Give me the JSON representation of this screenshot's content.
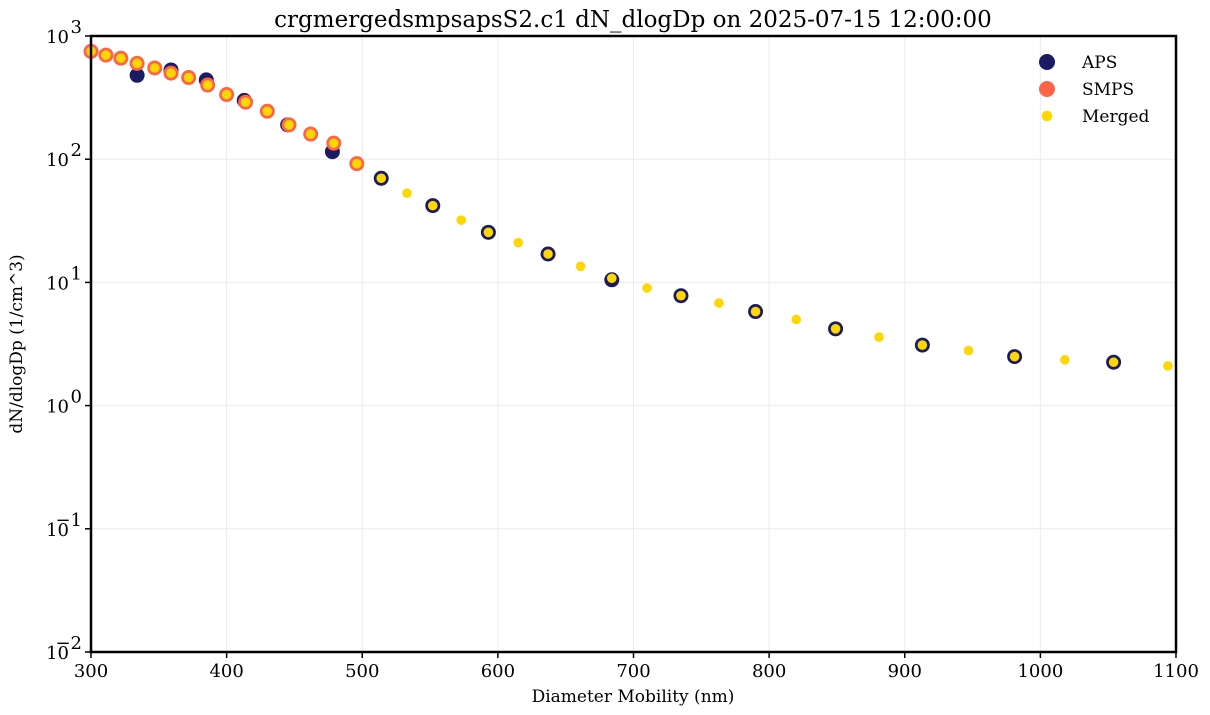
{
  "chart_data": {
    "type": "scatter",
    "title": "crgmergedsmpsapsS2.c1 dN_dlogDp on 2025-07-15 12:00:00",
    "xlabel": "Diameter Mobility (nm)",
    "ylabel": "dN/dlogDp (1/cm^3)",
    "xlim": [
      300,
      1100
    ],
    "ylim": [
      0.01,
      1000
    ],
    "yscale": "log",
    "grid": true,
    "legend": "top-right",
    "x_ticks": [
      "300",
      "400",
      "500",
      "600",
      "700",
      "800",
      "900",
      "1000",
      "1100"
    ],
    "x_tick_values": [
      300,
      400,
      500,
      600,
      700,
      800,
      900,
      1000,
      1100
    ],
    "y_ticks": [
      {
        "base": "10",
        "exp": "−2",
        "value": 0.01
      },
      {
        "base": "10",
        "exp": "−1",
        "value": 0.1
      },
      {
        "base": "10",
        "exp": "0",
        "value": 1
      },
      {
        "base": "10",
        "exp": "1",
        "value": 10
      },
      {
        "base": "10",
        "exp": "2",
        "value": 100
      },
      {
        "base": "10",
        "exp": "3",
        "value": 1000
      }
    ],
    "series": [
      {
        "name": "APS",
        "color": "#1b1b64",
        "x": [
          334,
          359,
          385,
          413,
          445,
          478,
          514,
          552,
          593,
          637,
          684,
          735,
          790,
          849,
          913,
          981,
          1054
        ],
        "y": [
          480,
          530,
          440,
          300,
          190,
          115,
          70,
          42,
          25.5,
          17,
          10.5,
          7.8,
          5.8,
          4.2,
          3.1,
          2.5,
          2.25
        ]
      },
      {
        "name": "SMPS",
        "color": "#ff6347",
        "x": [
          300,
          311,
          322,
          334,
          347,
          359,
          372,
          386,
          400,
          414,
          430,
          446,
          462,
          479,
          496
        ],
        "y": [
          750,
          700,
          660,
          600,
          550,
          500,
          460,
          400,
          335,
          290,
          245,
          190,
          160,
          135,
          92
        ]
      },
      {
        "name": "Merged",
        "color": "#ffd700",
        "x": [
          300,
          311,
          322,
          334,
          347,
          359,
          372,
          386,
          400,
          414,
          430,
          446,
          462,
          479,
          496,
          514,
          533,
          552,
          573,
          593,
          615,
          637,
          661,
          684,
          710,
          735,
          763,
          790,
          820,
          849,
          881,
          913,
          947,
          981,
          1018,
          1054,
          1094
        ],
        "y": [
          750,
          700,
          660,
          600,
          550,
          500,
          460,
          400,
          335,
          290,
          245,
          190,
          160,
          135,
          92,
          70,
          53,
          42,
          32,
          25.5,
          21,
          17,
          13.5,
          10.8,
          9,
          7.8,
          6.8,
          5.8,
          5,
          4.2,
          3.6,
          3.1,
          2.8,
          2.5,
          2.35,
          2.25,
          2.1
        ]
      }
    ]
  }
}
